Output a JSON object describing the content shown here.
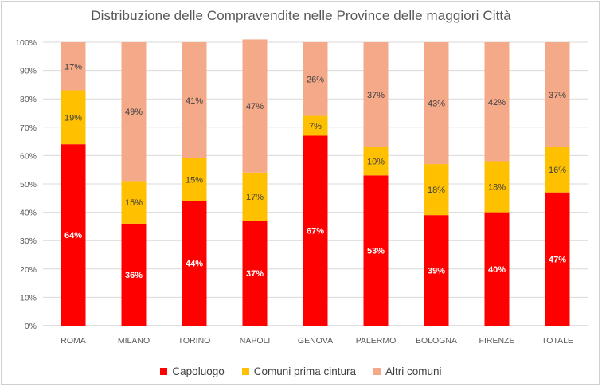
{
  "chart_data": {
    "type": "bar",
    "stacked": true,
    "title": "Distribuzione delle Compravendite nelle  Province delle maggiori Città",
    "categories": [
      "ROMA",
      "MILANO",
      "TORINO",
      "NAPOLI",
      "GENOVA",
      "PALERMO",
      "BOLOGNA",
      "FIRENZE",
      "TOTALE"
    ],
    "series": [
      {
        "name": "Capoluogo",
        "color": "#ff0000",
        "label_color": "#ffffff",
        "values": [
          64,
          36,
          44,
          37,
          67,
          53,
          39,
          40,
          47
        ],
        "labels": [
          "64%",
          "36%",
          "44%",
          "37%",
          "67%",
          "53%",
          "39%",
          "40%",
          "47%"
        ]
      },
      {
        "name": "Comuni prima cintura",
        "color": "#ffc000",
        "label_color": "#404040",
        "values": [
          19,
          15,
          15,
          17,
          7,
          10,
          18,
          18,
          16
        ],
        "labels": [
          "19%",
          "15%",
          "15%",
          "17%",
          "7%",
          "10%",
          "18%",
          "18%",
          "16%"
        ]
      },
      {
        "name": "Altri comuni",
        "color": "#f4a989",
        "label_color": "#404040",
        "values": [
          17,
          49,
          41,
          47,
          26,
          37,
          43,
          42,
          37
        ],
        "labels": [
          "17%",
          "49%",
          "41%",
          "47%",
          "26%",
          "37%",
          "43%",
          "42%",
          "37%"
        ]
      }
    ],
    "ylim": [
      0,
      100
    ],
    "yticks": [
      "0%",
      "10%",
      "20%",
      "30%",
      "40%",
      "50%",
      "60%",
      "70%",
      "80%",
      "90%",
      "100%"
    ],
    "grid": true,
    "legend": "bottom"
  }
}
